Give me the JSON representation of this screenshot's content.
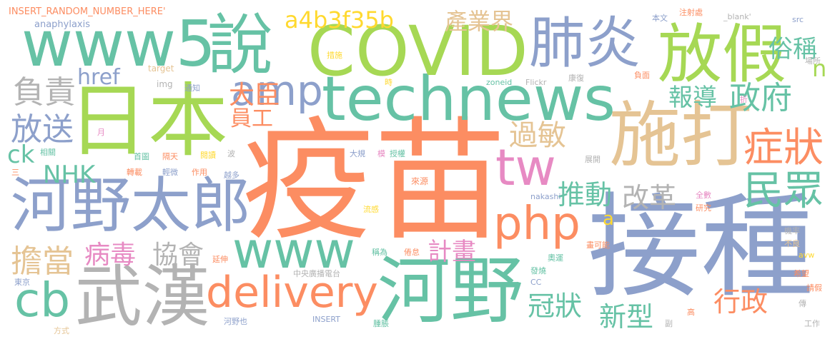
{
  "palette": {
    "orange": "#fc8d62",
    "green": "#a6d854",
    "blue": "#8da0cb",
    "teal": "#66c2a5",
    "tan": "#e5c494",
    "pink": "#e78ac3",
    "yellow": "#ffd92f",
    "gray": "#b3b3b3"
  },
  "words": [
    {
      "text": "疫苗",
      "color": "#fc8d62"
    },
    {
      "text": "接種",
      "color": "#8da0cb"
    },
    {
      "text": "日本",
      "color": "#a6d854"
    },
    {
      "text": "施打",
      "color": "#e5c494"
    },
    {
      "text": "technews",
      "color": "#66c2a5"
    },
    {
      "text": "COVID",
      "color": "#a6d854"
    },
    {
      "text": "河野",
      "color": "#66c2a5"
    },
    {
      "text": "www5",
      "color": "#66c2a5"
    },
    {
      "text": "說",
      "color": "#66c2a5"
    },
    {
      "text": "放假",
      "color": "#a6d854"
    },
    {
      "text": "肺炎",
      "color": "#8da0cb"
    },
    {
      "text": "河野太郎",
      "color": "#8da0cb"
    },
    {
      "text": "武漢",
      "color": "#b3b3b3"
    },
    {
      "text": "www",
      "color": "#66c2a5"
    },
    {
      "text": "amp",
      "color": "#8da0cb"
    },
    {
      "text": "delivery",
      "color": "#fc8d62"
    },
    {
      "text": "php",
      "color": "#fc8d62"
    },
    {
      "text": "tw",
      "color": "#e78ac3"
    },
    {
      "text": "cb",
      "color": "#66c2a5"
    },
    {
      "text": "症狀",
      "color": "#fc8d62"
    },
    {
      "text": "民眾",
      "color": "#66c2a5"
    },
    {
      "text": "過敏",
      "color": "#e5c494"
    },
    {
      "text": "a4b3f35b",
      "color": "#ffd92f"
    },
    {
      "text": "政府",
      "color": "#66c2a5"
    },
    {
      "text": "產業界",
      "color": "#e5c494"
    },
    {
      "text": "NHK",
      "color": "#66c2a5"
    },
    {
      "text": "href",
      "color": "#8da0cb"
    },
    {
      "text": "負責",
      "color": "#b3b3b3"
    },
    {
      "text": "放送",
      "color": "#8da0cb"
    },
    {
      "text": "推動",
      "color": "#66c2a5"
    },
    {
      "text": "改革",
      "color": "#b3b3b3"
    },
    {
      "text": "大臣",
      "color": "#fc8d62"
    },
    {
      "text": "報導",
      "color": "#66c2a5"
    },
    {
      "text": "俗稱",
      "color": "#66c2a5"
    },
    {
      "text": "新型",
      "color": "#66c2a5"
    },
    {
      "text": "行政",
      "color": "#fc8d62"
    },
    {
      "text": "冠狀",
      "color": "#66c2a5"
    },
    {
      "text": "計畫",
      "color": "#e78ac3"
    },
    {
      "text": "病毒",
      "color": "#e78ac3"
    },
    {
      "text": "協會",
      "color": "#b3b3b3"
    },
    {
      "text": "擔當",
      "color": "#e5c494"
    },
    {
      "text": "員工",
      "color": "#fc8d62"
    },
    {
      "text": "ck",
      "color": "#66c2a5"
    },
    {
      "text": "n",
      "color": "#a6d854"
    },
    {
      "text": "a",
      "color": "#ffd92f"
    },
    {
      "text": "INSERT_RANDOM_NUMBER_HERE'",
      "color": "#fc8d62"
    },
    {
      "text": "anaphylaxis",
      "color": "#8da0cb"
    },
    {
      "text": "target",
      "color": "#e5c494"
    },
    {
      "text": "img",
      "color": "#b3b3b3"
    },
    {
      "text": "月",
      "color": "#e78ac3"
    },
    {
      "text": "相關",
      "color": "#66c2a5"
    },
    {
      "text": "三",
      "color": "#fc8d62"
    },
    {
      "text": "措施",
      "color": "#ffd92f"
    },
    {
      "text": "通知",
      "color": "#8da0cb"
    },
    {
      "text": "時",
      "color": "#ffd92f"
    },
    {
      "text": "zoneid",
      "color": "#66c2a5"
    },
    {
      "text": "Flickr",
      "color": "#b3b3b3"
    },
    {
      "text": "康復",
      "color": "#b3b3b3"
    },
    {
      "text": "負面",
      "color": "#fc8d62"
    },
    {
      "text": "折",
      "color": "#e78ac3"
    },
    {
      "text": "本文",
      "color": "#8da0cb"
    },
    {
      "text": "注射處",
      "color": "#fc8d62"
    },
    {
      "text": "_blank'",
      "color": "#b3b3b3"
    },
    {
      "text": "src",
      "color": "#8da0cb"
    },
    {
      "text": "場所",
      "color": "#b3b3b3"
    },
    {
      "text": "首圖",
      "color": "#66c2a5"
    },
    {
      "text": "隔天",
      "color": "#fc8d62"
    },
    {
      "text": "閱讀",
      "color": "#ffd92f"
    },
    {
      "text": "波",
      "color": "#b3b3b3"
    },
    {
      "text": "大規",
      "color": "#8da0cb"
    },
    {
      "text": "模",
      "color": "#e78ac3"
    },
    {
      "text": "授權",
      "color": "#66c2a5"
    },
    {
      "text": "展開",
      "color": "#b3b3b3"
    },
    {
      "text": "轉載",
      "color": "#fc8d62"
    },
    {
      "text": "輕微",
      "color": "#8da0cb"
    },
    {
      "text": "作用",
      "color": "#fc8d62"
    },
    {
      "text": "越多",
      "color": "#8da0cb"
    },
    {
      "text": "來源",
      "color": "#fc8d62"
    },
    {
      "text": "nakashi",
      "color": "#8da0cb"
    },
    {
      "text": "流感",
      "color": "#ffd92f"
    },
    {
      "text": "全數",
      "color": "#e78ac3"
    },
    {
      "text": "研究",
      "color": "#fc8d62"
    },
    {
      "text": "機率",
      "color": "#b3b3b3"
    },
    {
      "text": "畫可能",
      "color": "#fc8d62"
    },
    {
      "text": "不良",
      "color": "#e5c494"
    },
    {
      "text": "延伸",
      "color": "#fc8d62"
    },
    {
      "text": "稱為",
      "color": "#66c2a5"
    },
    {
      "text": "倦怠",
      "color": "#fc8d62"
    },
    {
      "text": "奧運",
      "color": "#66c2a5"
    },
    {
      "text": "avw",
      "color": "#ffd92f"
    },
    {
      "text": "中央廣播電台",
      "color": "#b3b3b3"
    },
    {
      "text": "發燒",
      "color": "#66c2a5"
    },
    {
      "text": "CC",
      "color": "#8da0cb"
    },
    {
      "text": "希望",
      "color": "#fc8d62"
    },
    {
      "text": "請假",
      "color": "#fc8d62"
    },
    {
      "text": "東京",
      "color": "#8da0cb"
    },
    {
      "text": "傳",
      "color": "#b3b3b3"
    },
    {
      "text": "高",
      "color": "#fc8d62"
    },
    {
      "text": "河野也",
      "color": "#8da0cb"
    },
    {
      "text": "INSERT",
      "color": "#8da0cb"
    },
    {
      "text": "腫脹",
      "color": "#66c2a5"
    },
    {
      "text": "副",
      "color": "#b3b3b3"
    },
    {
      "text": "方式",
      "color": "#e5c494"
    },
    {
      "text": "工作",
      "color": "#b3b3b3"
    }
  ]
}
